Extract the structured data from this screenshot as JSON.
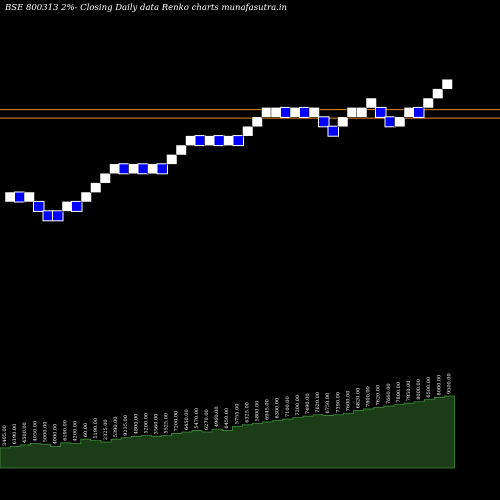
{
  "chart_data": {
    "type": "renko",
    "title": "BSE 800313 2%-  Closing Daily data  Renko  charts munafasutra.in",
    "colors": {
      "background": "#000000",
      "up_brick": "#ffffff",
      "down_brick": "#0000ff",
      "down_brick_inner": "#1a1aff",
      "level_line": "#e08a2a",
      "volume_fill": "#1a3d17",
      "volume_top": "#3f8f3a",
      "label": "#ffffff"
    },
    "bricks": [
      {
        "dir": "up",
        "level": 0
      },
      {
        "dir": "down",
        "level": 0
      },
      {
        "dir": "up",
        "level": 0
      },
      {
        "dir": "down",
        "level": -1
      },
      {
        "dir": "down",
        "level": -2
      },
      {
        "dir": "down",
        "level": -2
      },
      {
        "dir": "up",
        "level": -1
      },
      {
        "dir": "down",
        "level": -1
      },
      {
        "dir": "up",
        "level": 0
      },
      {
        "dir": "up",
        "level": 1
      },
      {
        "dir": "up",
        "level": 2
      },
      {
        "dir": "up",
        "level": 3
      },
      {
        "dir": "down",
        "level": 3
      },
      {
        "dir": "up",
        "level": 3
      },
      {
        "dir": "down",
        "level": 3
      },
      {
        "dir": "up",
        "level": 3
      },
      {
        "dir": "down",
        "level": 3
      },
      {
        "dir": "up",
        "level": 4
      },
      {
        "dir": "up",
        "level": 5
      },
      {
        "dir": "up",
        "level": 6
      },
      {
        "dir": "down",
        "level": 6
      },
      {
        "dir": "up",
        "level": 6
      },
      {
        "dir": "down",
        "level": 6
      },
      {
        "dir": "up",
        "level": 6
      },
      {
        "dir": "down",
        "level": 6
      },
      {
        "dir": "up",
        "level": 7
      },
      {
        "dir": "up",
        "level": 8
      },
      {
        "dir": "up",
        "level": 9
      },
      {
        "dir": "up",
        "level": 9
      },
      {
        "dir": "down",
        "level": 9
      },
      {
        "dir": "up",
        "level": 9
      },
      {
        "dir": "down",
        "level": 9
      },
      {
        "dir": "up",
        "level": 9
      },
      {
        "dir": "down",
        "level": 8
      },
      {
        "dir": "down",
        "level": 7
      },
      {
        "dir": "up",
        "level": 8
      },
      {
        "dir": "up",
        "level": 9
      },
      {
        "dir": "up",
        "level": 9
      },
      {
        "dir": "up",
        "level": 10
      },
      {
        "dir": "down",
        "level": 9
      },
      {
        "dir": "down",
        "level": 8
      },
      {
        "dir": "up",
        "level": 8
      },
      {
        "dir": "up",
        "level": 9
      },
      {
        "dir": "down",
        "level": 9
      },
      {
        "dir": "up",
        "level": 10
      },
      {
        "dir": "up",
        "level": 11
      },
      {
        "dir": "up",
        "level": 12
      }
    ],
    "level_lines": [
      9.4,
      8.5
    ],
    "volume": [
      28,
      30,
      32,
      34,
      33,
      30,
      35,
      34,
      40,
      38,
      36,
      40,
      42,
      44,
      45,
      44,
      45,
      48,
      50,
      52,
      50,
      54,
      52,
      58,
      60,
      62,
      64,
      66,
      68,
      70,
      72,
      74,
      73,
      74,
      76,
      80,
      82,
      84,
      86,
      88,
      90,
      92,
      95,
      98,
      100
    ],
    "volume_labels": [
      "3405.00",
      "6190.00",
      "4500.00",
      "4050.00",
      "5000.00",
      "4000.00",
      "6190.00",
      "4200.00",
      "60.00",
      "5190.00",
      "2325.00",
      "5390.00",
      "9235.00",
      "4800.00",
      "5200.00",
      "3560.00",
      "5525.00",
      "7200.00",
      "6450.00",
      "5470.00",
      "6270.00",
      "4960.00",
      "6450.00",
      "5755.00",
      "6325.00",
      "5800.00",
      "6945.00",
      "6300.00",
      "7100.00",
      "7200.00",
      "7490.00",
      "7620.00",
      "6750.00",
      "7390.00",
      "7600.00",
      "6820.00",
      "7800.00",
      "7620.00",
      "7660.00",
      "7800.00",
      "7950.00",
      "8000.00",
      "6500.00",
      "8000.00",
      "9500.00"
    ]
  }
}
